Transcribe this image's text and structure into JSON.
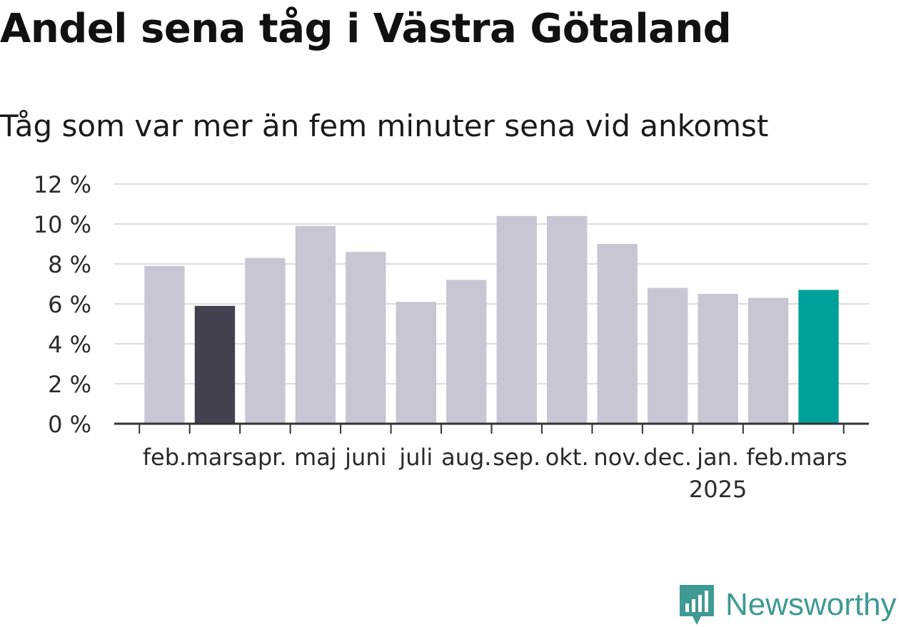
{
  "title": "Andel sena tåg i Västra Götaland",
  "subtitle": "Tåg som var mer än fem minuter sena vid ankomst",
  "brand": {
    "name": "Newsworthy",
    "color": "#3f9a93"
  },
  "chart_data": {
    "type": "bar",
    "categories": [
      "feb.",
      "mars",
      "apr.",
      "maj",
      "juni",
      "juli",
      "aug.",
      "sep.",
      "okt.",
      "nov.",
      "dec.",
      "jan.",
      "feb.",
      "mars"
    ],
    "year_labels": [
      null,
      null,
      null,
      null,
      null,
      null,
      null,
      null,
      null,
      null,
      null,
      "2025",
      null,
      null
    ],
    "values": [
      7.9,
      5.9,
      8.3,
      9.9,
      8.6,
      6.1,
      7.2,
      10.4,
      10.4,
      9.0,
      6.8,
      6.5,
      6.3,
      6.7
    ],
    "highlight": {
      "1": "#43414f",
      "13": "#00a19a"
    },
    "default_color": "#c8c6d2",
    "ylim": [
      0,
      12
    ],
    "yticks": [
      0,
      2,
      4,
      6,
      8,
      10,
      12
    ],
    "ytick_labels": [
      "0 %",
      "2 %",
      "4 %",
      "6 %",
      "8 %",
      "10 %",
      "12 %"
    ],
    "grid": true,
    "xlabel": "",
    "ylabel": ""
  }
}
